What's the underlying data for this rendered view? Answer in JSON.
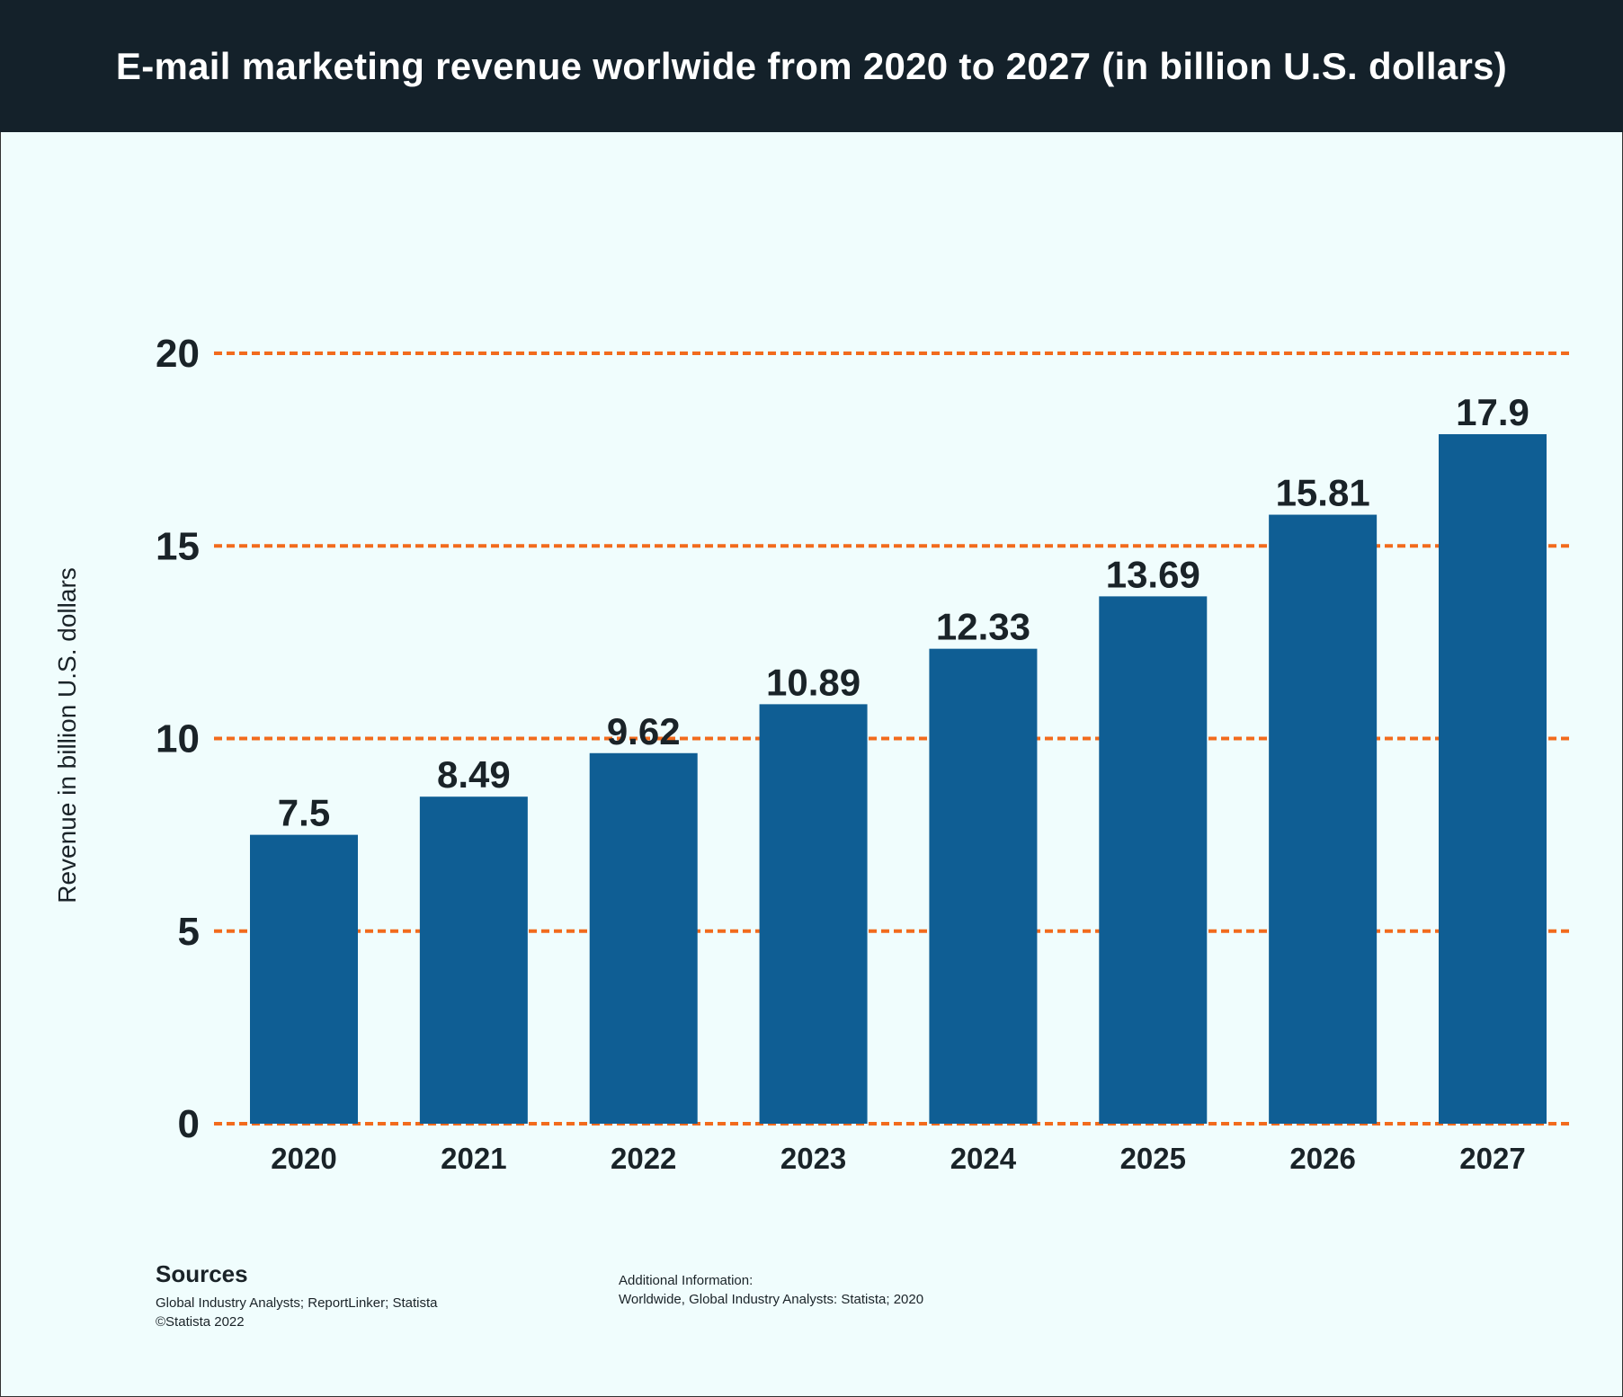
{
  "title": "E-mail marketing revenue worlwide from 2020 to 2027 (in billion U.S. dollars)",
  "colors": {
    "header_bg": "#14212a",
    "background": "#f0fdfd",
    "bar": "#0f5e94",
    "gridline": "#f26b1d",
    "text": "#1a2328"
  },
  "chart_data": {
    "type": "bar",
    "title": "E-mail marketing revenue worlwide from 2020 to 2027 (in billion U.S. dollars)",
    "categories": [
      "2020",
      "2021",
      "2022",
      "2023",
      "2024",
      "2025",
      "2026",
      "2027"
    ],
    "values": [
      7.5,
      8.49,
      9.62,
      10.89,
      12.33,
      13.69,
      15.81,
      17.9
    ],
    "value_labels": [
      "7.5",
      "8.49",
      "9.62",
      "10.89",
      "12.33",
      "13.69",
      "15.81",
      "17.9"
    ],
    "xlabel": "",
    "ylabel": "Revenue in billion U.S. dollars",
    "ylim": [
      0,
      20
    ],
    "yticks": [
      0,
      5,
      10,
      15,
      20
    ],
    "grid": true,
    "grid_style": "dashed"
  },
  "sources": {
    "heading": "Sources",
    "line1": "Global Industry Analysts; ReportLinker; Statista",
    "line2": "©Statista 2022"
  },
  "additional": {
    "line1": "Additional Information:",
    "line2": "Worldwide, Global Industry Analysts: Statista; 2020"
  }
}
